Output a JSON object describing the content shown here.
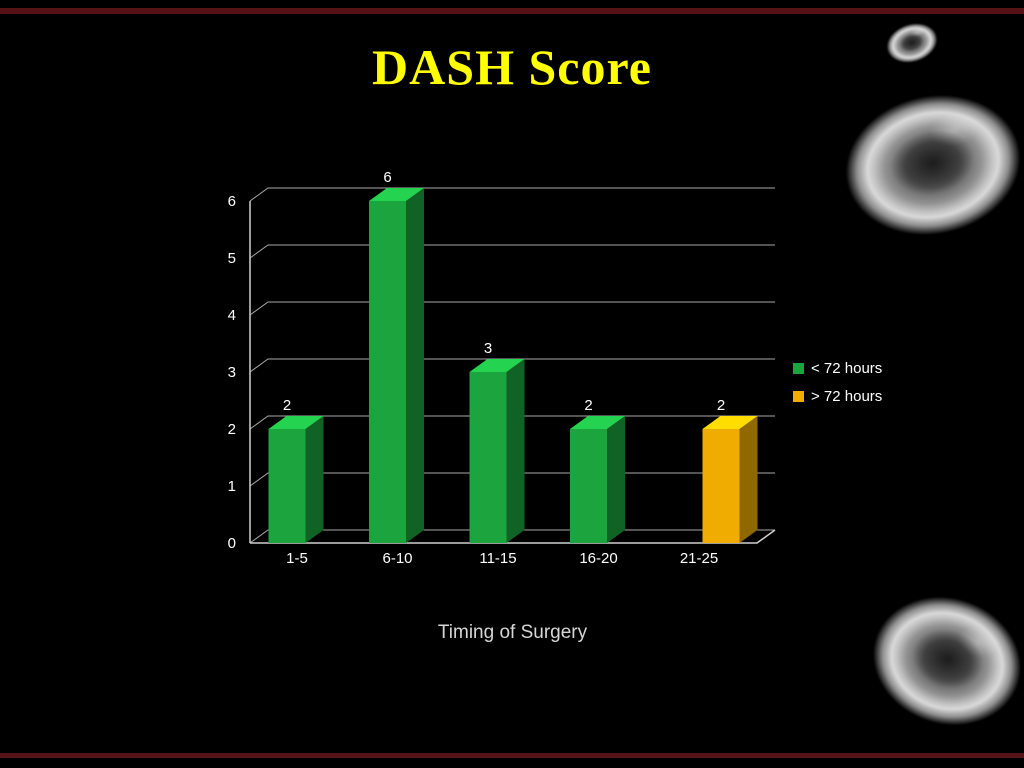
{
  "slide": {
    "title": "DASH Score",
    "title_color": "#ffff00",
    "background": "#000000",
    "border_color": "#551317"
  },
  "chart_data": {
    "type": "bar",
    "title": "DASH Score",
    "xlabel": "Timing of Surgery",
    "ylabel": "",
    "categories": [
      "1-5",
      "6-10",
      "11-15",
      "16-20",
      "21-25"
    ],
    "series": [
      {
        "name": "< 72 hours",
        "color": "#1ca53e",
        "values": [
          2,
          6,
          3,
          2,
          null
        ]
      },
      {
        "name": "> 72 hours",
        "color": "#f0ad00",
        "values": [
          null,
          null,
          null,
          null,
          2
        ]
      }
    ],
    "data_labels": [
      2,
      6,
      3,
      2,
      2
    ],
    "ylim": [
      0,
      6
    ],
    "yticks": [
      0,
      1,
      2,
      3,
      4,
      5,
      6
    ],
    "grid": true,
    "legend_position": "right",
    "style": "3d-column",
    "gridline_color": "#a8a8a8",
    "axis_color": "#d0d0d0",
    "label_color": "#ffffff"
  }
}
